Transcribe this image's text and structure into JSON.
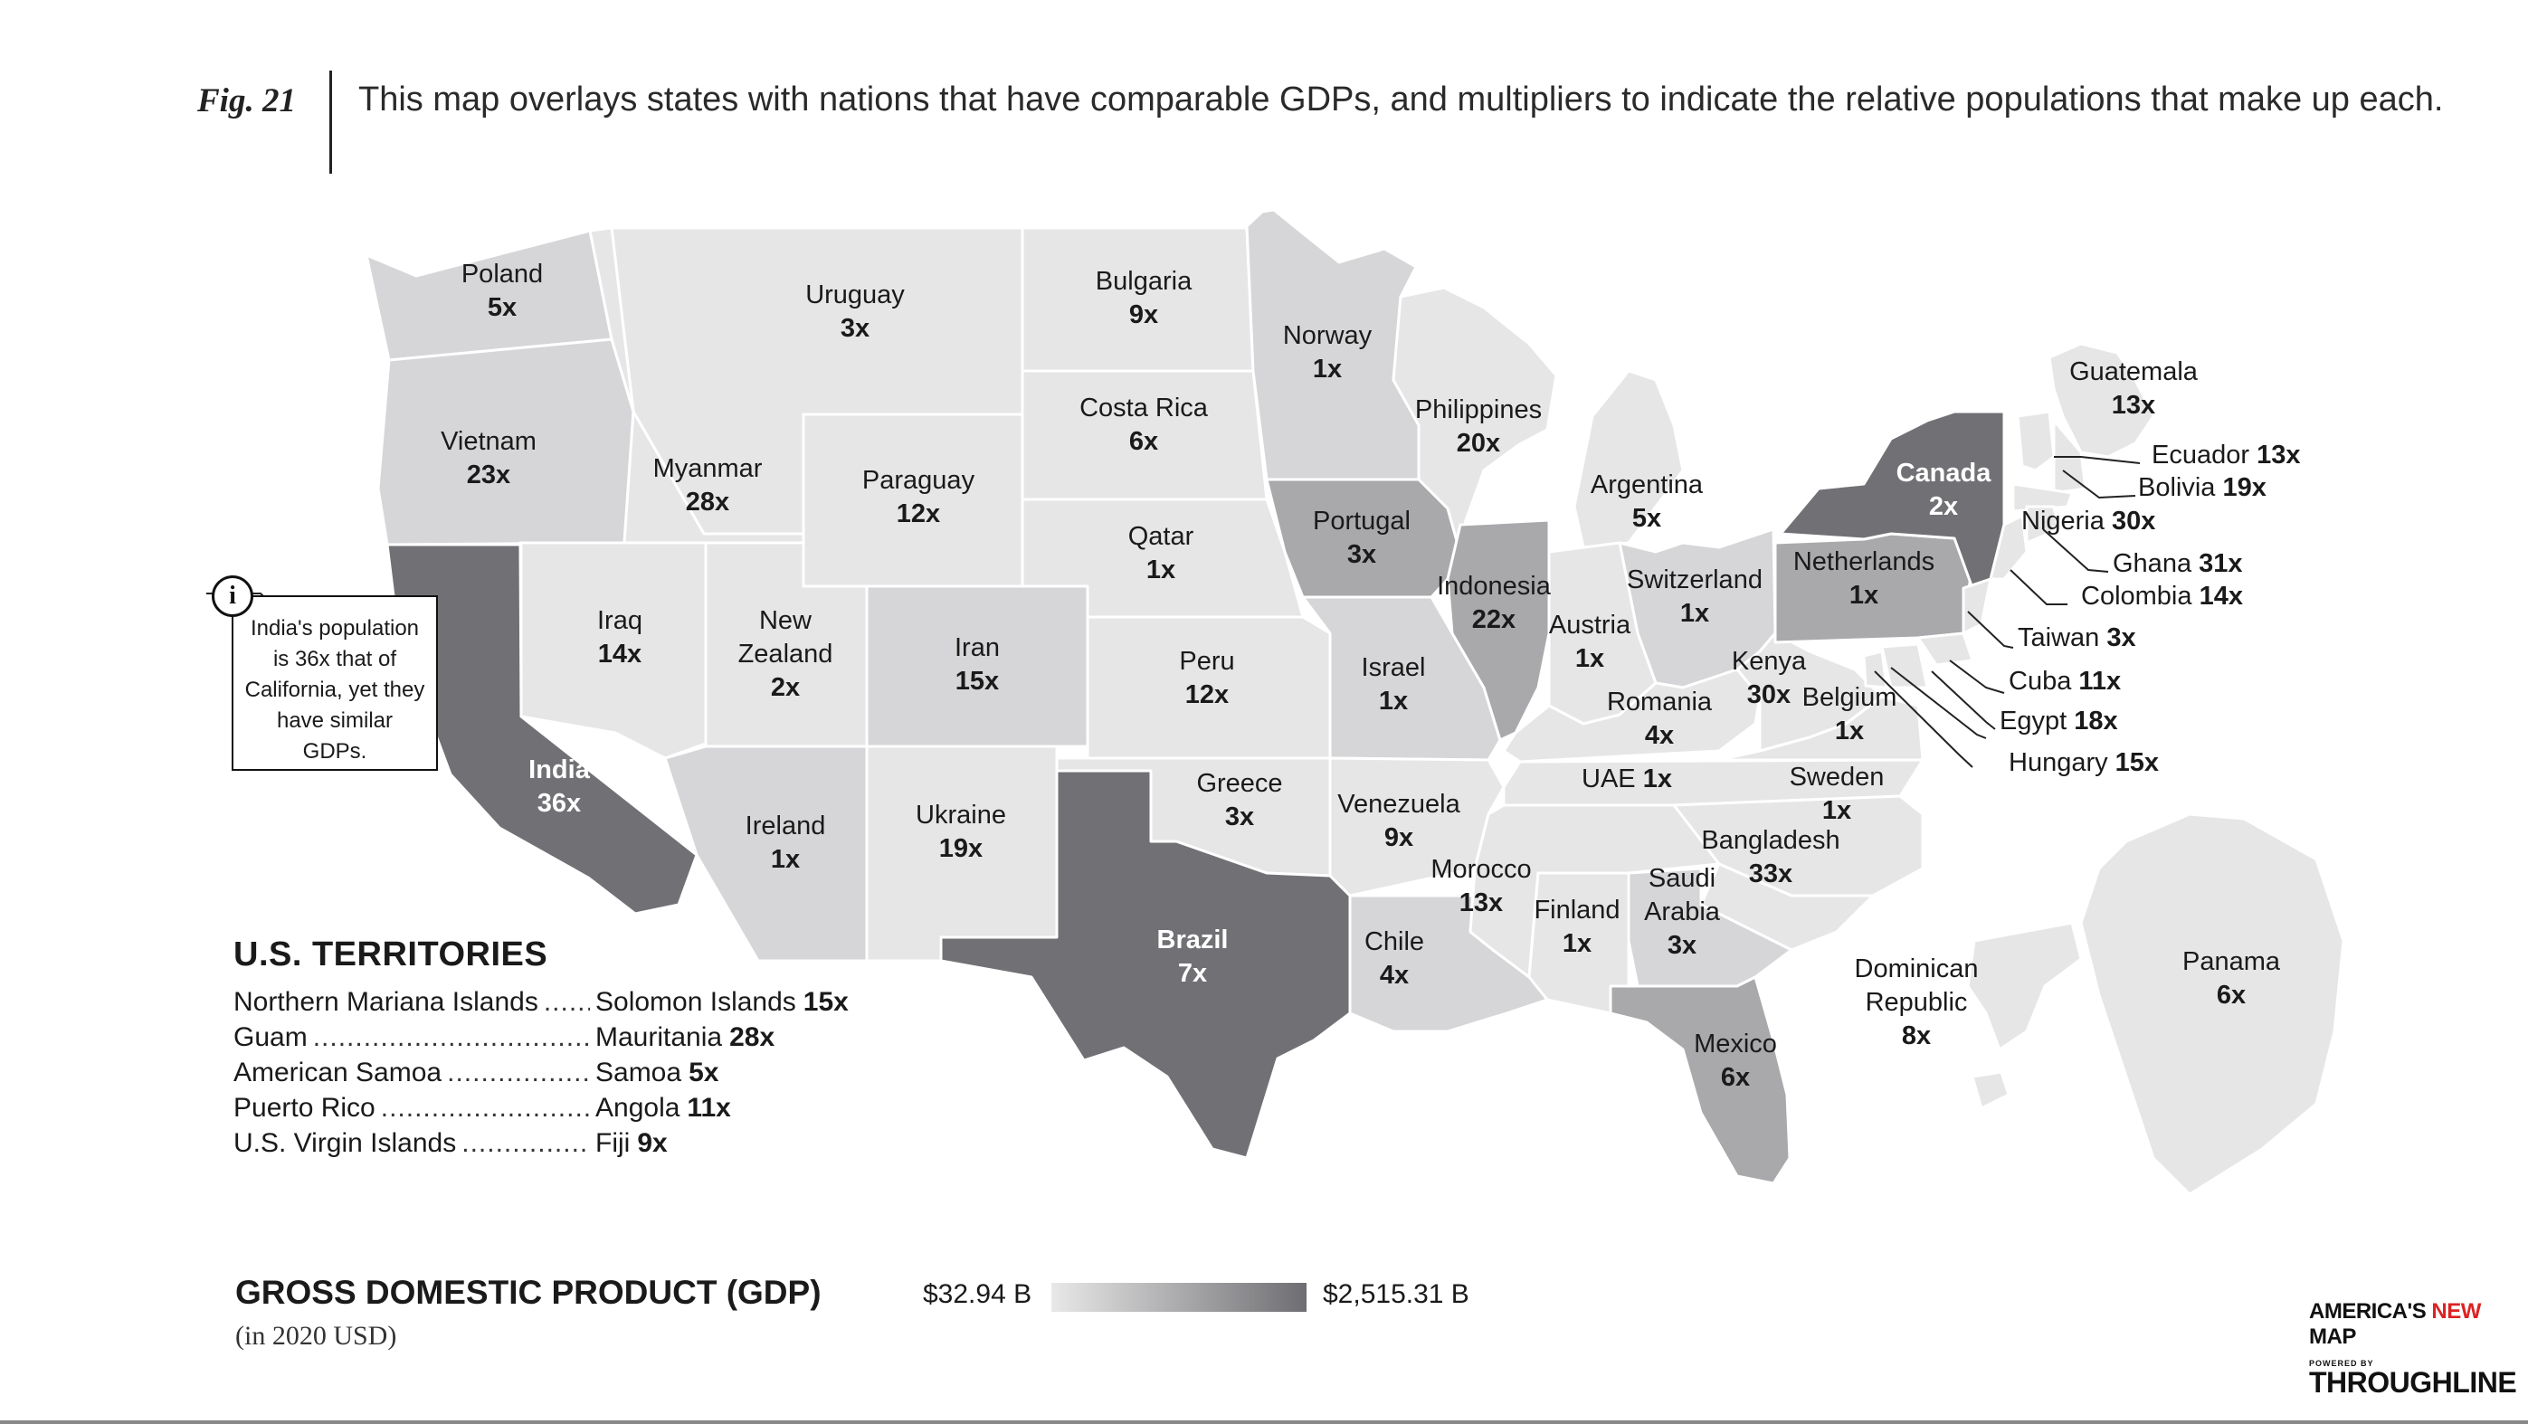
{
  "figure": {
    "label": "Fig. 21",
    "caption": "This map overlays states with nations that have comparable GDPs, and multipliers to indicate the relative populations that make up each."
  },
  "callout": {
    "icon": "info-icon",
    "text": "India's population is 36x that of California, yet they have similar GDPs."
  },
  "regions": [
    {
      "country": "Poland",
      "mult": "5x",
      "shade": "light"
    },
    {
      "country": "Vietnam",
      "mult": "23x",
      "shade": "light"
    },
    {
      "country": "India",
      "mult": "36x",
      "shade": "dark"
    },
    {
      "country": "Uruguay",
      "mult": "3x",
      "shade": "lightest"
    },
    {
      "country": "Myanmar",
      "mult": "28x",
      "shade": "lightest"
    },
    {
      "country": "Iraq",
      "mult": "14x",
      "shade": "lightest"
    },
    {
      "country": "New Zealand",
      "mult": "2x",
      "shade": "lightest"
    },
    {
      "country": "Ireland",
      "mult": "1x",
      "shade": "light"
    },
    {
      "country": "Paraguay",
      "mult": "12x",
      "shade": "lightest"
    },
    {
      "country": "Iran",
      "mult": "15x",
      "shade": "light"
    },
    {
      "country": "Ukraine",
      "mult": "19x",
      "shade": "lightest"
    },
    {
      "country": "Bulgaria",
      "mult": "9x",
      "shade": "lightest"
    },
    {
      "country": "Costa Rica",
      "mult": "6x",
      "shade": "lightest"
    },
    {
      "country": "Qatar",
      "mult": "1x",
      "shade": "lightest"
    },
    {
      "country": "Peru",
      "mult": "12x",
      "shade": "lightest"
    },
    {
      "country": "Greece",
      "mult": "3x",
      "shade": "lightest"
    },
    {
      "country": "Brazil",
      "mult": "7x",
      "shade": "dark"
    },
    {
      "country": "Norway",
      "mult": "1x",
      "shade": "light"
    },
    {
      "country": "Portugal",
      "mult": "3x",
      "shade": "medium"
    },
    {
      "country": "Israel",
      "mult": "1x",
      "shade": "light"
    },
    {
      "country": "Venezuela",
      "mult": "9x",
      "shade": "lightest"
    },
    {
      "country": "Chile",
      "mult": "4x",
      "shade": "light"
    },
    {
      "country": "Philippines",
      "mult": "20x",
      "shade": "lightest"
    },
    {
      "country": "Indonesia",
      "mult": "22x",
      "shade": "medium"
    },
    {
      "country": "Argentina",
      "mult": "5x",
      "shade": "lightest"
    },
    {
      "country": "Switzerland",
      "mult": "1x",
      "shade": "light"
    },
    {
      "country": "Austria",
      "mult": "1x",
      "shade": "lightest"
    },
    {
      "country": "Romania",
      "mult": "4x",
      "shade": "lightest"
    },
    {
      "country": "Kenya",
      "mult": "30x",
      "shade": "lightest"
    },
    {
      "country": "Belgium",
      "mult": "1x",
      "shade": "lightest"
    },
    {
      "country": "UAE",
      "mult": "1x",
      "shade": "lightest"
    },
    {
      "country": "Sweden",
      "mult": "1x",
      "shade": "lightest"
    },
    {
      "country": "Bangladesh",
      "mult": "33x",
      "shade": "lightest"
    },
    {
      "country": "Morocco",
      "mult": "13x",
      "shade": "lightest"
    },
    {
      "country": "Finland",
      "mult": "1x",
      "shade": "lightest"
    },
    {
      "country": "Saudi Arabia",
      "mult": "3x",
      "shade": "light"
    },
    {
      "country": "Mexico",
      "mult": "6x",
      "shade": "medium"
    },
    {
      "country": "Netherlands",
      "mult": "1x",
      "shade": "medium"
    },
    {
      "country": "Canada",
      "mult": "2x",
      "shade": "dark"
    },
    {
      "country": "Guatemala",
      "mult": "13x",
      "shade": "lightest"
    },
    {
      "country": "Ecuador",
      "mult": "13x",
      "shade": "lightest"
    },
    {
      "country": "Bolivia",
      "mult": "19x",
      "shade": "lightest"
    },
    {
      "country": "Nigeria",
      "mult": "30x",
      "shade": "lightest"
    },
    {
      "country": "Ghana",
      "mult": "31x",
      "shade": "lightest"
    },
    {
      "country": "Colombia",
      "mult": "14x",
      "shade": "lightest"
    },
    {
      "country": "Taiwan",
      "mult": "3x",
      "shade": "lightest"
    },
    {
      "country": "Cuba",
      "mult": "11x",
      "shade": "lightest"
    },
    {
      "country": "Egypt",
      "mult": "18x",
      "shade": "lightest"
    },
    {
      "country": "Hungary",
      "mult": "15x",
      "shade": "lightest"
    },
    {
      "country": "Dominican Republic",
      "mult": "8x",
      "shade": "lightest"
    },
    {
      "country": "Panama",
      "mult": "6x",
      "shade": "lightest"
    }
  ],
  "territories": {
    "title": "U.S. TERRITORIES",
    "items": [
      {
        "name": "Northern Mariana Islands",
        "country": "Solomon Islands",
        "mult": "15x"
      },
      {
        "name": "Guam",
        "country": "Mauritania",
        "mult": "28x"
      },
      {
        "name": "American Samoa",
        "country": "Samoa",
        "mult": "5x"
      },
      {
        "name": "Puerto Rico",
        "country": "Angola",
        "mult": "11x"
      },
      {
        "name": "U.S. Virgin Islands",
        "country": "Fiji",
        "mult": "9x"
      }
    ]
  },
  "legend": {
    "title": "GROSS DOMESTIC PRODUCT (GDP)",
    "subtitle": "(in 2020 USD)",
    "min_label": "$32.94 B",
    "max_label": "$2,515.31 B",
    "color_min": "#e8e8e8",
    "color_max": "#6e6e72"
  },
  "brand": {
    "name_part1": "AMERICA'S ",
    "name_part2": "NEW",
    "name_part3": " MAP",
    "powered": "POWERED BY",
    "through": "THROUGHLINE",
    "accent": "#d22222"
  },
  "shades": {
    "lightest": "#e6e6e7",
    "light": "#d6d6d8",
    "medium": "#a9a9ac",
    "dark": "#717175"
  }
}
